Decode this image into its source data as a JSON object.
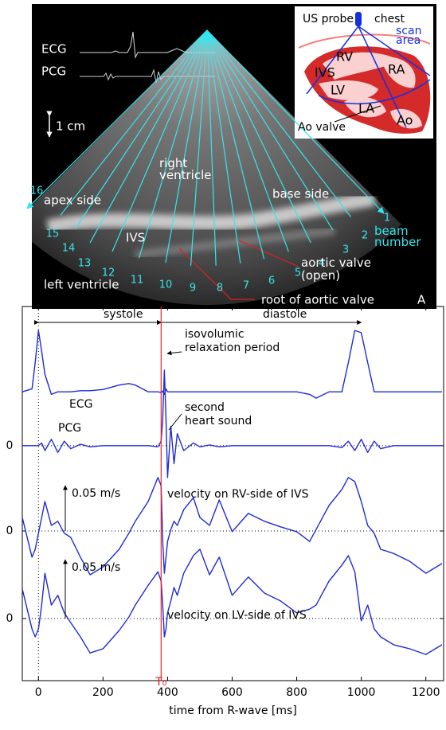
{
  "panel_a": {
    "label": "A",
    "ecg": "ECG",
    "pcg": "PCG",
    "scale": "1 cm",
    "right_ventricle": [
      "right",
      "ventricle"
    ],
    "apex_side": "apex side",
    "base_side": "base side",
    "ivs": "IVS",
    "left_ventricle": "left ventricle",
    "aortic_valve": [
      "aortic valve",
      "(open)"
    ],
    "aortic_root": "root of aortic valve",
    "beam_axis_label": [
      "beam",
      "number"
    ],
    "beam_numbers": [
      "1",
      "2",
      "3",
      "4",
      "5",
      "6",
      "7",
      "8",
      "9",
      "10",
      "11",
      "12",
      "13",
      "14",
      "15",
      "16"
    ],
    "inset": {
      "probe": "US probe",
      "chest": "chest",
      "scan_area": [
        "scan",
        "area"
      ],
      "rv": "RV",
      "ra": "RA",
      "ivs": "IVS",
      "lv": "LV",
      "la": "LA",
      "ao": "Ao",
      "ao_valve": "Ao valve"
    }
  },
  "chart_data": {
    "type": "line",
    "xlabel": "time from R-wave [ms]",
    "xlim": [
      -50,
      1255
    ],
    "xticks": [
      0,
      200,
      400,
      600,
      800,
      1000,
      1200
    ],
    "ylim": [
      0,
      100
    ],
    "yticks": [
      {
        "value": 62.8,
        "label": "0"
      },
      {
        "value": 40,
        "label": "0"
      },
      {
        "value": 16.6,
        "label": "0"
      }
    ],
    "grid": true,
    "x": [
      -50,
      -20,
      -10,
      0,
      10,
      20,
      40,
      60,
      80,
      100,
      130,
      160,
      200,
      250,
      280,
      300,
      340,
      370,
      380,
      385,
      390,
      395,
      400,
      410,
      420,
      430,
      450,
      480,
      500,
      530,
      560,
      600,
      650,
      700,
      750,
      800,
      840,
      860,
      900,
      940,
      960,
      980,
      1000,
      1020,
      1040,
      1060,
      1100,
      1150,
      1200,
      1250
    ],
    "series": [
      {
        "name": "ECG",
        "color": "#1f2bd8",
        "values": [
          77.2,
          78,
          85,
          93.6,
          88,
          81.9,
          76.5,
          77.2,
          77.2,
          77.2,
          77.5,
          77.5,
          77.8,
          79,
          79.4,
          79,
          77.2,
          77.2,
          77,
          77.4,
          76.5,
          78,
          77.2,
          77.2,
          77.2,
          77.2,
          77.2,
          77.2,
          77.2,
          77.2,
          77.2,
          77.2,
          77.2,
          77.2,
          77.2,
          77.2,
          76.5,
          75.5,
          77.2,
          77.2,
          85,
          93.6,
          93,
          85,
          77.2,
          77.2,
          77.2,
          77.2,
          77.2,
          77.2
        ]
      },
      {
        "name": "PCG",
        "color": "#1f2bd8",
        "values": [
          62.8,
          62.8,
          62.8,
          62.8,
          63.5,
          61.5,
          64.5,
          61,
          64,
          62,
          63.2,
          62.5,
          62.8,
          62.8,
          62.8,
          62.8,
          62.8,
          62.5,
          64,
          70,
          83,
          70,
          54.3,
          68,
          58,
          66,
          61.5,
          63.5,
          62.5,
          63,
          62.5,
          62.8,
          62.8,
          62.8,
          62.8,
          62.8,
          62.8,
          62.8,
          62.8,
          62.3,
          64,
          61.5,
          64.5,
          61,
          64,
          62,
          62.8,
          62.8,
          62.8,
          62.8
        ]
      },
      {
        "name": "velocity on RV-side of IVS",
        "color": "#1f2bd8",
        "values": [
          43.6,
          33.0,
          35.1,
          39.4,
          43.6,
          47.9,
          41.5,
          42.6,
          39.4,
          38.3,
          33.0,
          28.3,
          30.4,
          35.1,
          39.4,
          42.6,
          47.9,
          54.3,
          52.1,
          37.2,
          28.7,
          33.0,
          37.2,
          40.4,
          42.6,
          41.5,
          45.7,
          48.9,
          43.6,
          41.5,
          48.3,
          39.8,
          44.7,
          42.6,
          41.1,
          39.8,
          37.2,
          40.4,
          46.8,
          51.1,
          54.3,
          53.2,
          47.9,
          41.5,
          39.4,
          35.1,
          34.0,
          31.9,
          28.7,
          31.3
        ]
      },
      {
        "name": "velocity on LV-side of IVS",
        "color": "#1f2bd8",
        "values": [
          24.5,
          13.8,
          11.7,
          13.8,
          20.2,
          28.7,
          20.2,
          22.8,
          18.1,
          15.5,
          11.7,
          7.4,
          8.5,
          13.4,
          17.0,
          20.2,
          25.5,
          29.1,
          26.6,
          20.2,
          11.7,
          13.8,
          18.1,
          21.3,
          24.9,
          22.8,
          28.7,
          33.4,
          35.1,
          28.3,
          33.0,
          22.8,
          27.7,
          23.4,
          21.3,
          18.1,
          19.1,
          20.2,
          26.6,
          30.9,
          33.4,
          29.1,
          16.0,
          20.2,
          13.8,
          11.7,
          9.6,
          8.5,
          7.0,
          9.6
        ]
      }
    ],
    "annotations": [
      {
        "text": "systole",
        "x": [
          0,
          380
        ]
      },
      {
        "text": "diastole",
        "x": [
          380,
          1000
        ]
      },
      {
        "text": [
          "isovolumic",
          "relaxation period"
        ]
      },
      {
        "text": [
          "second",
          "heart sound"
        ]
      },
      {
        "text": "0.05 m/s"
      },
      {
        "text": "0.05 m/s"
      },
      {
        "text": "T₀",
        "x": 380,
        "color": "#e8202a"
      }
    ]
  }
}
